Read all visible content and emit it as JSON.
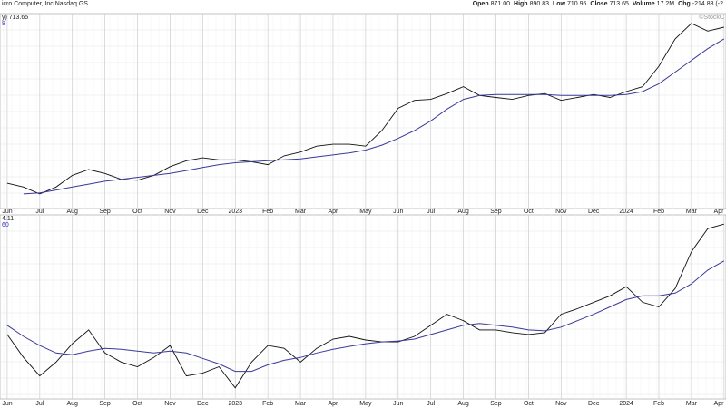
{
  "header": {
    "name": "icro Computer, Inc Nasdaq GS",
    "quote": [
      {
        "label": "Open",
        "value": "871.00"
      },
      {
        "label": "High",
        "value": "890.83"
      },
      {
        "label": "Low",
        "value": "710.95"
      },
      {
        "label": "Close",
        "value": "713.65"
      },
      {
        "label": "Volume",
        "value": "17.2M"
      },
      {
        "label": "Chg",
        "value": "-214.83 (-2"
      }
    ],
    "legend": "y) 713.65",
    "legend_sub": "8",
    "watermark": "©StockC"
  },
  "chart_data": [
    {
      "type": "line",
      "xlim": [
        -0.22,
        22.06
      ],
      "ylim": [
        0,
        100
      ],
      "xticks": [
        {
          "value": 0,
          "label": "Jun"
        },
        {
          "value": 1,
          "label": "Jul"
        },
        {
          "value": 2,
          "label": "Aug"
        },
        {
          "value": 3,
          "label": "Sep"
        },
        {
          "value": 4,
          "label": "Oct"
        },
        {
          "value": 5,
          "label": "Nov"
        },
        {
          "value": 6,
          "label": "Dec"
        },
        {
          "value": 7,
          "label": "2023"
        },
        {
          "value": 8,
          "label": "Feb"
        },
        {
          "value": 9,
          "label": "Mar"
        },
        {
          "value": 10,
          "label": "Apr"
        },
        {
          "value": 11,
          "label": "May"
        },
        {
          "value": 12,
          "label": "Jun"
        },
        {
          "value": 13,
          "label": "Jul"
        },
        {
          "value": 14,
          "label": "Aug"
        },
        {
          "value": 15,
          "label": "Sep"
        },
        {
          "value": 16,
          "label": "Oct"
        },
        {
          "value": 17,
          "label": "Nov"
        },
        {
          "value": 18,
          "label": "Dec"
        },
        {
          "value": 19,
          "label": "2024"
        },
        {
          "value": 20,
          "label": "Feb"
        },
        {
          "value": 21,
          "label": "Mar"
        },
        {
          "value": 22,
          "label": "Apr"
        }
      ],
      "x": [
        0,
        0.5,
        1,
        1.5,
        2,
        2.5,
        3,
        3.5,
        4,
        4.5,
        5,
        5.5,
        6,
        6.5,
        7,
        7.5,
        8,
        8.5,
        9,
        9.5,
        10,
        10.5,
        11,
        11.5,
        12,
        12.5,
        13,
        13.5,
        14,
        14.5,
        15,
        15.5,
        16,
        16.5,
        17,
        17.5,
        18,
        18.5,
        19,
        19.5,
        20,
        20.5,
        21,
        21.5,
        22
      ],
      "series": [
        {
          "color": "#111111",
          "values": [
            13,
            11,
            7.5,
            11,
            17,
            20,
            18,
            15,
            14.5,
            17,
            21.5,
            24.5,
            26,
            25,
            25,
            24,
            22.5,
            27,
            29,
            32,
            33,
            33,
            32,
            40,
            51.5,
            55.5,
            56,
            59,
            62.5,
            58,
            57,
            56,
            58,
            59,
            55.5,
            57,
            58.5,
            57,
            60,
            62.5,
            73,
            87,
            95,
            91,
            93
          ]
        },
        {
          "color": "#3a3a9a",
          "values": [
            null,
            7.5,
            8,
            9.5,
            11,
            12.5,
            14,
            15,
            16,
            17,
            18,
            19.5,
            21,
            22.5,
            23.5,
            24,
            24.5,
            25,
            25.5,
            26.5,
            27.5,
            28.5,
            30,
            32.5,
            36,
            40,
            45,
            51,
            56,
            58,
            58.5,
            58.5,
            58.5,
            58.5,
            58,
            58,
            58,
            58,
            58.5,
            60,
            64,
            70,
            76,
            82,
            87
          ]
        }
      ]
    },
    {
      "type": "line",
      "legend": "4.11",
      "legend_sub": "60",
      "xlim": [
        -0.22,
        22.06
      ],
      "ylim": [
        0,
        100
      ],
      "xticks": [
        {
          "value": 0,
          "label": "Jun"
        },
        {
          "value": 1,
          "label": "Jul"
        },
        {
          "value": 2,
          "label": "Aug"
        },
        {
          "value": 3,
          "label": "Sep"
        },
        {
          "value": 4,
          "label": "Oct"
        },
        {
          "value": 5,
          "label": "Nov"
        },
        {
          "value": 6,
          "label": "Dec"
        },
        {
          "value": 7,
          "label": "2023"
        },
        {
          "value": 8,
          "label": "Feb"
        },
        {
          "value": 9,
          "label": "Mar"
        },
        {
          "value": 10,
          "label": "Apr"
        },
        {
          "value": 11,
          "label": "May"
        },
        {
          "value": 12,
          "label": "Jun"
        },
        {
          "value": 13,
          "label": "Jul"
        },
        {
          "value": 14,
          "label": "Aug"
        },
        {
          "value": 15,
          "label": "Sep"
        },
        {
          "value": 16,
          "label": "Oct"
        },
        {
          "value": 17,
          "label": "Nov"
        },
        {
          "value": 18,
          "label": "Dec"
        },
        {
          "value": 19,
          "label": "2024"
        },
        {
          "value": 20,
          "label": "Feb"
        },
        {
          "value": 21,
          "label": "Mar"
        },
        {
          "value": 22,
          "label": "Apr"
        }
      ],
      "x": [
        0,
        0.5,
        1,
        1.5,
        2,
        2.5,
        3,
        3.5,
        4,
        4.5,
        5,
        5.5,
        6,
        6.5,
        7,
        7.5,
        8,
        8.5,
        9,
        9.5,
        10,
        10.5,
        11,
        11.5,
        12,
        12.5,
        13,
        13.5,
        14,
        14.5,
        15,
        15.5,
        16,
        16.5,
        17,
        17.5,
        18,
        18.5,
        19,
        19.5,
        20,
        20.5,
        21,
        21.5,
        22
      ],
      "series": [
        {
          "color": "#111111",
          "values": [
            35,
            22.5,
            12.5,
            20,
            30,
            37.5,
            25,
            20,
            17.5,
            22.5,
            29,
            12.5,
            14,
            17.5,
            6,
            20,
            29,
            27.5,
            20,
            27.5,
            32.5,
            34,
            32,
            31,
            31,
            34,
            40,
            46,
            42.5,
            37.5,
            37.5,
            36,
            35,
            36,
            46,
            49,
            52.5,
            56,
            61,
            52.5,
            50,
            60,
            80,
            92.5,
            95
          ]
        },
        {
          "color": "#3a3a9a",
          "values": [
            40,
            34,
            29,
            25,
            24,
            26,
            27.5,
            27,
            26,
            25,
            26,
            25,
            22,
            19,
            15,
            15,
            18.5,
            21,
            22.5,
            25,
            27,
            28.5,
            30,
            31,
            31.5,
            32.5,
            35,
            37.5,
            40,
            41,
            40,
            39,
            37.5,
            37,
            39,
            42.5,
            46,
            50,
            54,
            56,
            56,
            57.5,
            62.5,
            70,
            75
          ]
        }
      ]
    }
  ]
}
